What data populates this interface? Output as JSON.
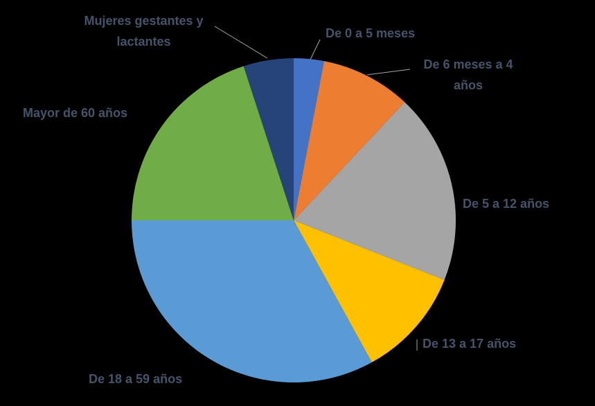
{
  "chart_data": {
    "type": "pie",
    "categories": [
      "De 0 a 5 meses",
      "De 6 meses a 4 años",
      "De 5 a 12 años",
      "De 13 a 17 años",
      "De 18 a 59 años",
      "Mayor de 60 años",
      "Mujeres gestantes y lactantes"
    ],
    "values": [
      3,
      9,
      19,
      11,
      33,
      20,
      5
    ],
    "colors": [
      "#4472c4",
      "#ed7d31",
      "#a5a5a5",
      "#ffc000",
      "#5b9bd5",
      "#70ad47",
      "#264478"
    ]
  }
}
